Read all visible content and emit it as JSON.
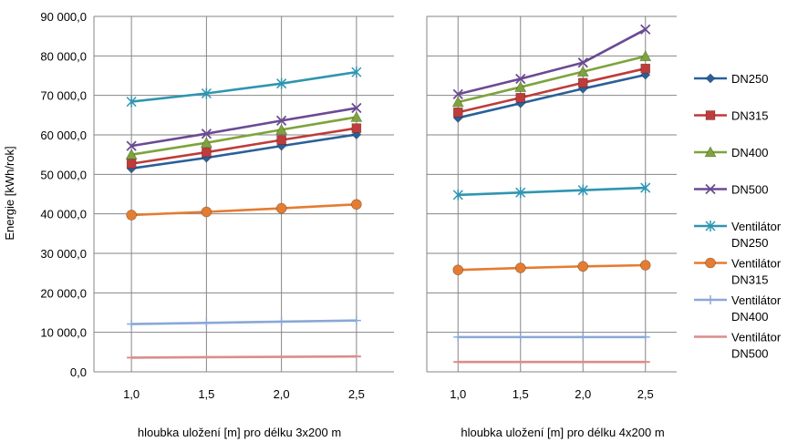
{
  "chart_data": {
    "type": "line",
    "ylabel": "Energie [kWh/rok]",
    "ylim": [
      0,
      90000
    ],
    "y_ticks": [
      "0,0",
      "10 000,0",
      "20 000,0",
      "30 000,0",
      "40 000,0",
      "50 000,0",
      "60 000,0",
      "70 000,0",
      "80 000,0",
      "90 000,0"
    ],
    "grid": true,
    "legend_position": "right",
    "categories": [
      "1,0",
      "1,5",
      "2,0",
      "2,5"
    ],
    "legend": [
      {
        "key": "dn250",
        "label1": "DN250",
        "label2": "",
        "color": "#2a6099",
        "marker": "diamond"
      },
      {
        "key": "dn315",
        "label1": "DN315",
        "label2": "",
        "color": "#be3c3a",
        "marker": "square"
      },
      {
        "key": "dn400",
        "label1": "DN400",
        "label2": "",
        "color": "#7ea33c",
        "marker": "triangle"
      },
      {
        "key": "dn500",
        "label1": "DN500",
        "label2": "",
        "color": "#6b4a93",
        "marker": "x"
      },
      {
        "key": "v250",
        "label1": "Ventilátor",
        "label2": "DN250",
        "color": "#2f95b1",
        "marker": "star"
      },
      {
        "key": "v315",
        "label1": "Ventilátor",
        "label2": "DN315",
        "color": "#e47c31",
        "marker": "circle"
      },
      {
        "key": "v400",
        "label1": "Ventilátor",
        "label2": "DN400",
        "color": "#8aa8d6",
        "marker": "plus"
      },
      {
        "key": "v500",
        "label1": "Ventilátor",
        "label2": "DN500",
        "color": "#dc8c8b",
        "marker": "dash"
      }
    ],
    "panels": [
      {
        "xlabel": "hloubka uložení [m] pro délku 3x200 m",
        "series": [
          {
            "key": "dn250",
            "values": [
              51500,
              54200,
              57200,
              60100
            ]
          },
          {
            "key": "dn315",
            "values": [
              52700,
              55600,
              58700,
              61700
            ]
          },
          {
            "key": "dn400",
            "values": [
              55000,
              58000,
              61300,
              64500
            ]
          },
          {
            "key": "dn500",
            "values": [
              57200,
              60300,
              63600,
              66800
            ]
          },
          {
            "key": "v250",
            "values": [
              68400,
              70500,
              73000,
              75900
            ]
          },
          {
            "key": "v315",
            "values": [
              39700,
              40500,
              41400,
              42400
            ]
          },
          {
            "key": "v400",
            "values": [
              12100,
              12400,
              12700,
              13000
            ]
          },
          {
            "key": "v500",
            "values": [
              3600,
              3700,
              3800,
              3900
            ]
          }
        ]
      },
      {
        "xlabel": "hloubka uložení [m] pro délku 4x200 m",
        "series": [
          {
            "key": "dn250",
            "values": [
              64300,
              68000,
              71700,
              75200
            ]
          },
          {
            "key": "dn315",
            "values": [
              65700,
              69400,
              73200,
              76800
            ]
          },
          {
            "key": "dn400",
            "values": [
              68300,
              72100,
              76000,
              79900
            ]
          },
          {
            "key": "dn500",
            "values": [
              70300,
              74200,
              78300,
              86700
            ]
          },
          {
            "key": "v250",
            "values": [
              44800,
              45400,
              46000,
              46600
            ]
          },
          {
            "key": "v315",
            "values": [
              25800,
              26300,
              26700,
              27000
            ]
          },
          {
            "key": "v400",
            "values": [
              8800,
              8800,
              8800,
              8800
            ]
          },
          {
            "key": "v500",
            "values": [
              2500,
              2500,
              2500,
              2500
            ]
          }
        ]
      }
    ]
  }
}
